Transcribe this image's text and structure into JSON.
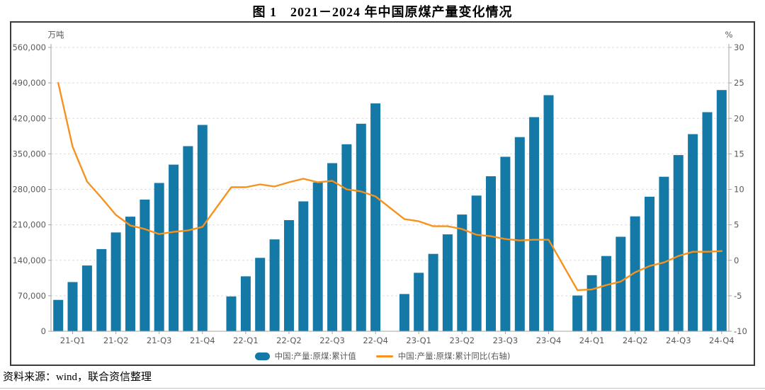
{
  "title": "图 1　2021－2024 年中国原煤产量变化情况",
  "source_note": "资料来源：wind，联合资信整理",
  "chart_data": {
    "type": "bar",
    "subtype": "bar+line combo, monthly cumulative values grouped by year with a gap at each January",
    "left_axis": {
      "unit": "万吨",
      "min": 0,
      "max": 560000,
      "tick_step": 70000,
      "tick_labels": [
        "0",
        "70,000",
        "140,000",
        "210,000",
        "280,000",
        "350,000",
        "420,000",
        "490,000",
        "560,000"
      ]
    },
    "right_axis": {
      "unit": "%",
      "min": -10,
      "max": 30,
      "tick_step": 5,
      "tick_labels": [
        "-10",
        "-5",
        "0",
        "5",
        "10",
        "15",
        "20",
        "25",
        "30"
      ]
    },
    "x_axis": {
      "tick_labels": [
        "21-Q1",
        "21-Q2",
        "21-Q3",
        "21-Q4",
        "22-Q1",
        "22-Q2",
        "22-Q3",
        "22-Q4",
        "23-Q1",
        "23-Q2",
        "23-Q3",
        "23-Q4",
        "24-Q1",
        "24-Q2",
        "24-Q3",
        "24-Q4"
      ]
    },
    "grid": "horizontal dashed light gray",
    "legend_position": "bottom center",
    "legend": [
      {
        "label": "中国:产量:原煤:累计值",
        "marker": "bar",
        "color": "#1579A7"
      },
      {
        "label": "中国:产量:原煤:累计同比(右轴)",
        "marker": "line",
        "color": "#F6921E"
      }
    ],
    "months_per_year": [
      2,
      3,
      4,
      5,
      6,
      7,
      8,
      9,
      10,
      11,
      12
    ],
    "series": [
      {
        "name": "中国:产量:原煤:累计值",
        "type": "bar",
        "axis": "left",
        "unit": "万吨",
        "color": "#1579A7",
        "values_by_year": [
          {
            "year": 2021,
            "values": [
              61800,
              97100,
              129700,
              162200,
              195000,
              226100,
              259700,
              292600,
              328700,
              365200,
              407100
            ]
          },
          {
            "year": 2022,
            "values": [
              68700,
              108400,
              144800,
              181200,
              219200,
              256200,
              293600,
              331700,
              368900,
              409400,
              449600
            ]
          },
          {
            "year": 2023,
            "values": [
              73400,
              115300,
              152600,
              191200,
              230300,
              267700,
              305800,
              344200,
              383000,
              422400,
              465800
            ]
          },
          {
            "year": 2024,
            "values": [
              70500,
              110600,
              148500,
              186400,
              226600,
              265500,
              304900,
              347600,
              388900,
              432200,
              475900
            ]
          }
        ]
      },
      {
        "name": "中国:产量:原煤:累计同比(右轴)",
        "type": "line",
        "axis": "right",
        "unit": "%",
        "color": "#F6921E",
        "values_by_year": [
          {
            "year": 2021,
            "values": [
              25.0,
              16.0,
              11.1,
              8.8,
              6.4,
              4.9,
              4.4,
              3.7,
              4.0,
              4.2,
              4.7
            ]
          },
          {
            "year": 2022,
            "values": [
              10.3,
              10.3,
              10.7,
              10.4,
              11.0,
              11.5,
              11.0,
              11.2,
              10.0,
              9.7,
              9.0
            ]
          },
          {
            "year": 2023,
            "values": [
              5.8,
              5.5,
              4.8,
              4.8,
              4.4,
              3.6,
              3.4,
              3.0,
              2.8,
              2.9,
              2.9
            ]
          },
          {
            "year": 2024,
            "values": [
              -4.2,
              -4.1,
              -3.5,
              -3.0,
              -1.7,
              -0.8,
              -0.3,
              0.6,
              1.2,
              1.2,
              1.3
            ]
          }
        ]
      }
    ]
  }
}
